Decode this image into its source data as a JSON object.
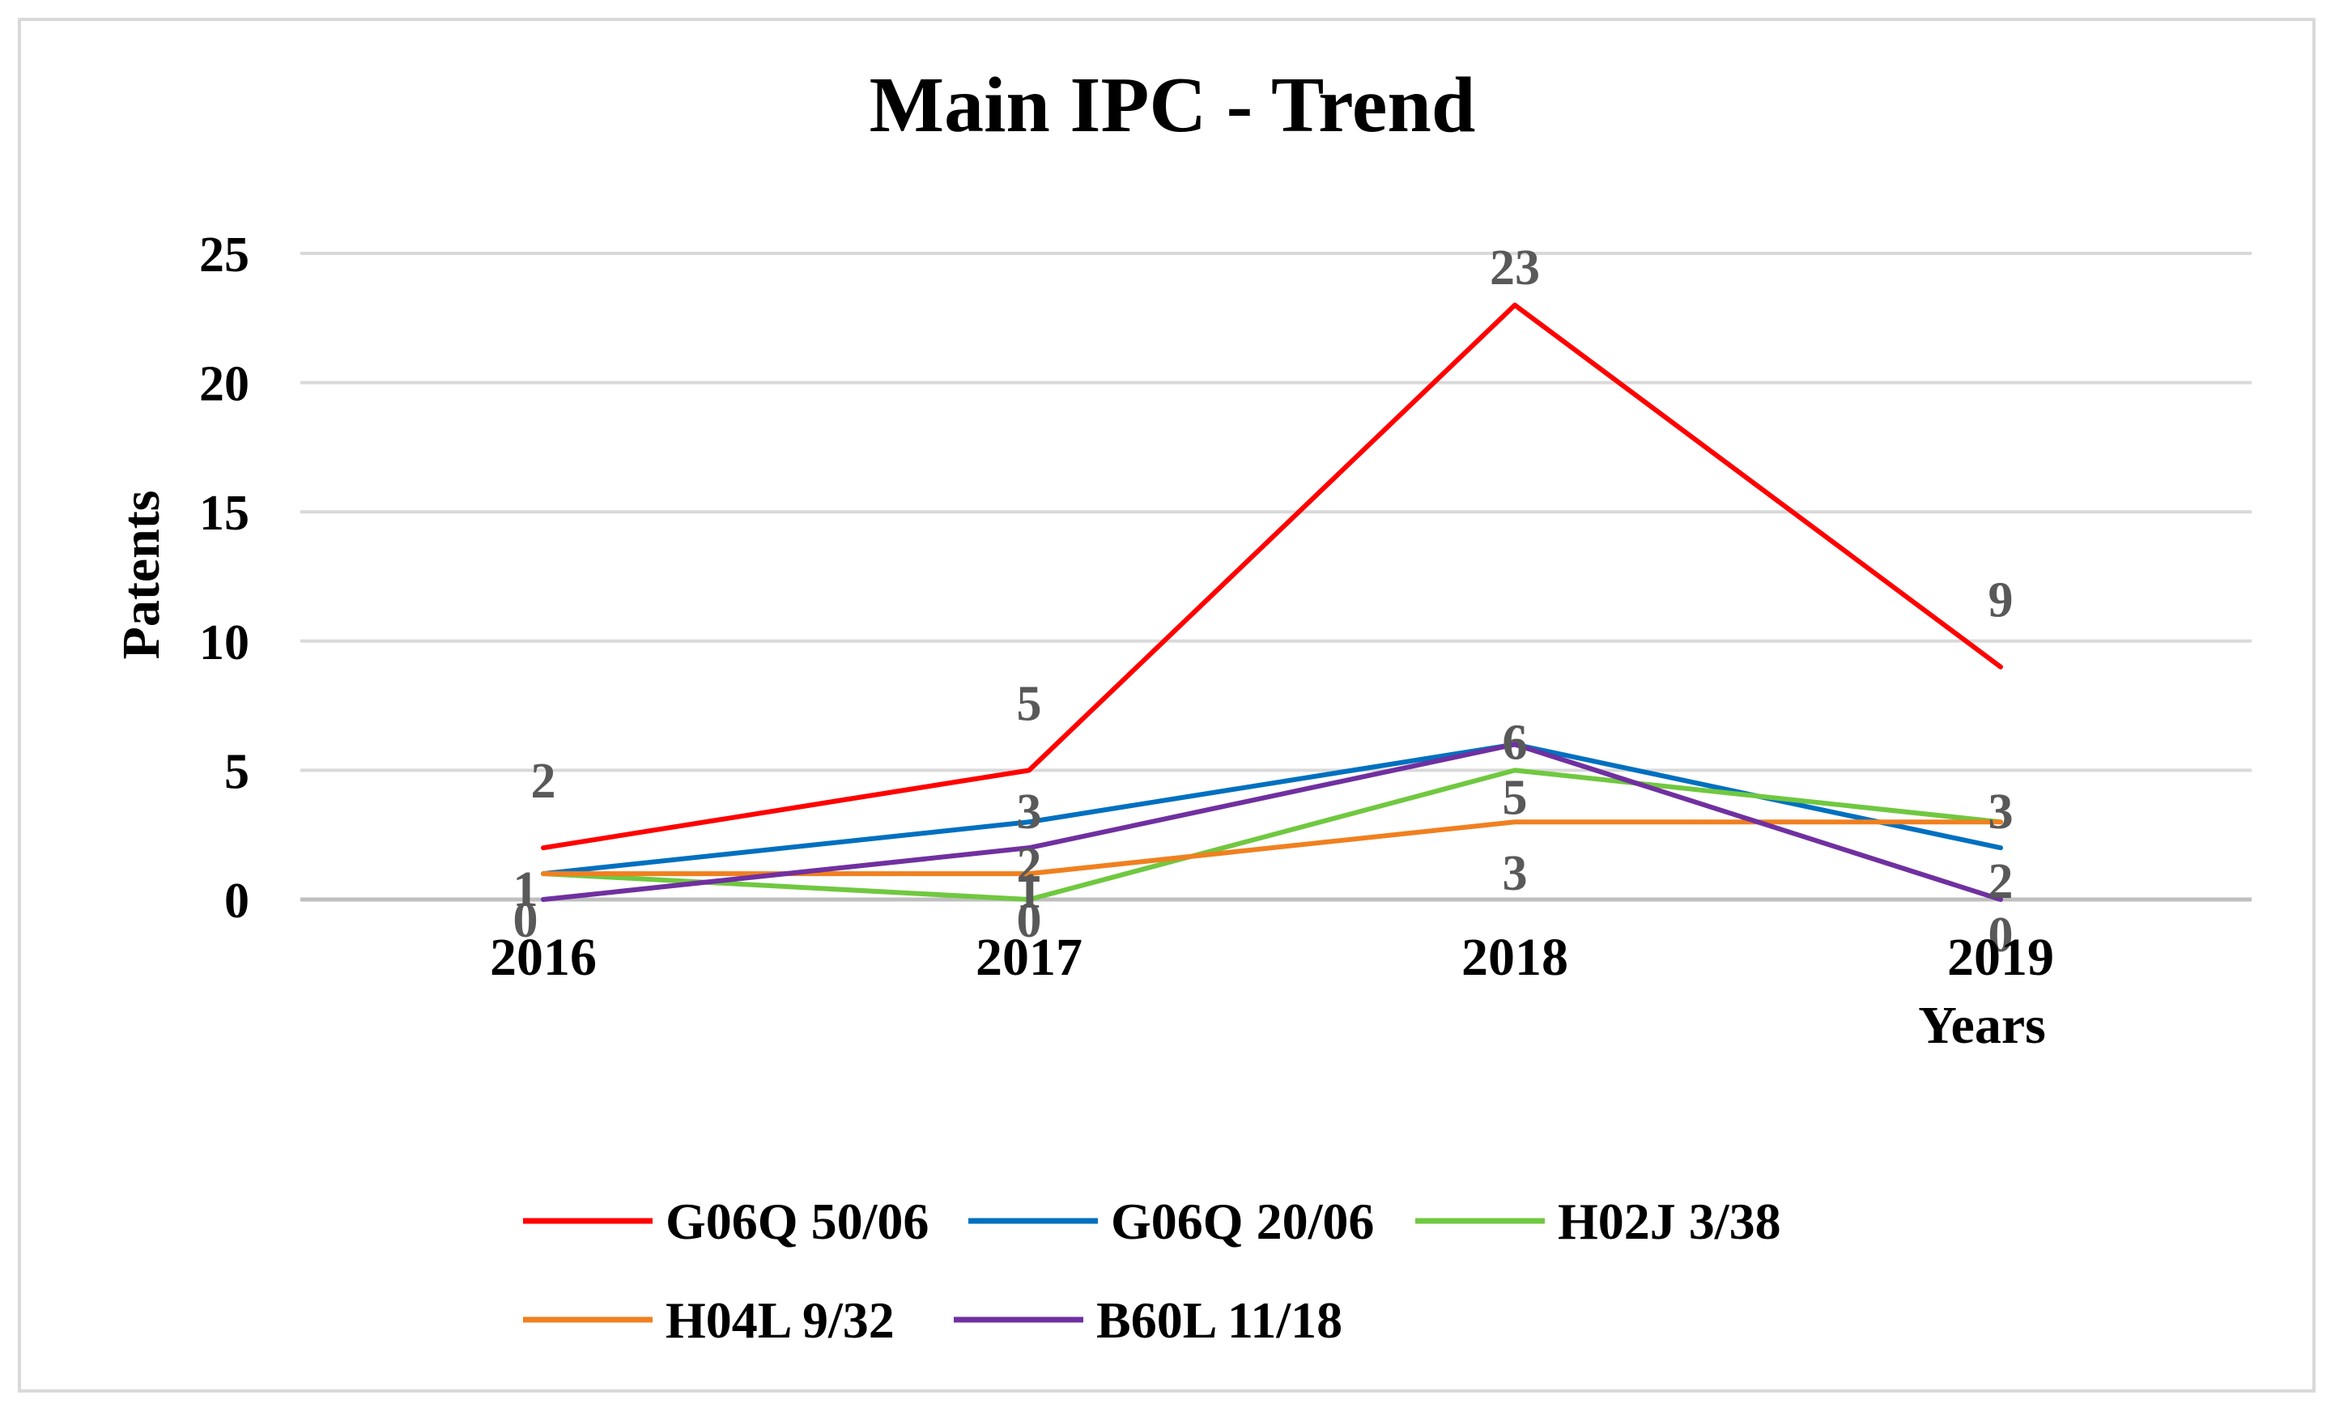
{
  "chart_data": {
    "type": "line",
    "title": "Main IPC - Trend",
    "xlabel": "Years",
    "ylabel": "Patents",
    "categories": [
      "2016",
      "2017",
      "2018",
      "2019"
    ],
    "ylim": [
      0,
      25
    ],
    "yticks": [
      "0",
      "5",
      "10",
      "15",
      "20",
      "25"
    ],
    "grid": true,
    "legend_position": "bottom",
    "series": [
      {
        "name": "G06Q 50/06",
        "color": "#ff0000",
        "values": [
          2,
          5,
          23,
          9
        ],
        "labels": [
          "2",
          "5",
          "23",
          "9"
        ]
      },
      {
        "name": "G06Q 20/06",
        "color": "#0070c0",
        "values": [
          1,
          3,
          6,
          2
        ],
        "labels": [
          "1",
          "3",
          "6",
          "2"
        ]
      },
      {
        "name": "H02J 3/38",
        "color": "#70c840",
        "values": [
          1,
          0,
          5,
          3
        ],
        "labels": [
          "1",
          "0",
          "5",
          "3"
        ]
      },
      {
        "name": "H04L 9/32",
        "color": "#f08020",
        "values": [
          1,
          1,
          3,
          3
        ],
        "labels": [
          "1",
          "1",
          "3",
          "3"
        ]
      },
      {
        "name": "B60L 11/18",
        "color": "#7030a0",
        "values": [
          0,
          2,
          6,
          0
        ],
        "labels": [
          "0",
          "2",
          "6",
          "0"
        ]
      }
    ]
  }
}
